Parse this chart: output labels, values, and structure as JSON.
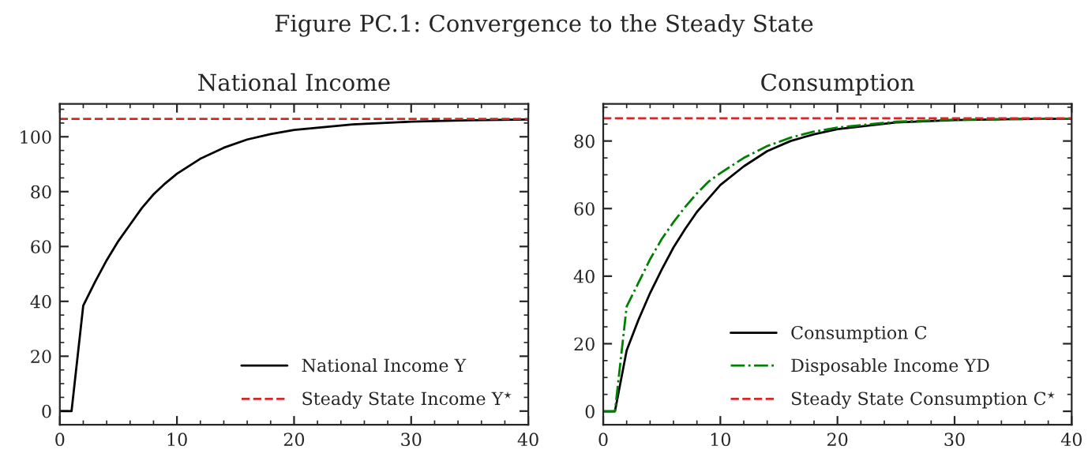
{
  "chart_data": [
    {
      "type": "line",
      "title": "National Income",
      "annotations": [
        "Figure PC.1: Convergence to the Steady State"
      ],
      "x": [
        0,
        1,
        2,
        3,
        4,
        5,
        6,
        7,
        8,
        9,
        10,
        12,
        14,
        16,
        18,
        20,
        25,
        30,
        35,
        40
      ],
      "series": [
        {
          "name": "National Income Y",
          "color": "#000000",
          "line_style": "solid",
          "values": [
            0,
            0,
            38.5,
            47,
            55,
            62,
            68,
            74,
            79,
            83,
            86.5,
            92,
            96,
            99,
            101,
            102.5,
            104.5,
            105.5,
            106,
            106.3
          ]
        }
      ],
      "ref_lines": [
        {
          "axis": "y",
          "value": 106.5,
          "label": "Steady State Income Y$^{⋆}$",
          "color": "#d62728",
          "line_style": "dashed"
        }
      ],
      "xlim": [
        0,
        40
      ],
      "xticks": [
        0,
        10,
        20,
        30,
        40
      ],
      "ylim": [
        -5,
        112
      ],
      "yticks": [
        0,
        20,
        40,
        60,
        80,
        100
      ],
      "legend": "bottom right",
      "grid": false
    },
    {
      "type": "line",
      "title": "Consumption",
      "x": [
        0,
        1,
        2,
        3,
        4,
        5,
        6,
        7,
        8,
        9,
        10,
        12,
        14,
        16,
        18,
        20,
        25,
        30,
        35,
        40
      ],
      "series": [
        {
          "name": "Consumption C",
          "color": "#000000",
          "line_style": "solid",
          "values": [
            0,
            0,
            18,
            27,
            35,
            42,
            48.5,
            54,
            59,
            63,
            67,
            72.5,
            77,
            80,
            82,
            83.5,
            85.5,
            86.2,
            86.5,
            86.6
          ]
        },
        {
          "name": "Disposable Income YD",
          "color": "#008000",
          "line_style": "dashdot",
          "values": [
            0,
            0,
            31,
            38,
            45,
            51,
            56,
            60.5,
            64.5,
            68,
            70.5,
            75,
            78.5,
            81,
            82.8,
            84,
            85.7,
            86.3,
            86.5,
            86.6
          ]
        }
      ],
      "ref_lines": [
        {
          "axis": "y",
          "value": 86.7,
          "label": "Steady State Consumption C$^{⋆}$",
          "color": "#d62728",
          "line_style": "dashed"
        }
      ],
      "xlim": [
        0,
        40
      ],
      "xticks": [
        0,
        10,
        20,
        30,
        40
      ],
      "ylim": [
        -4,
        91
      ],
      "yticks": [
        0,
        20,
        40,
        60,
        80
      ],
      "legend": "bottom right",
      "grid": false
    }
  ]
}
